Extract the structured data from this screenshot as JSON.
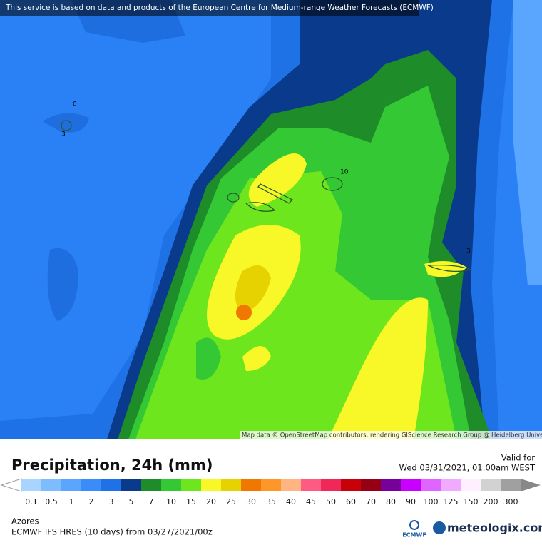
{
  "banner": "This service is based on data and products of the European Centre for Medium-range Weather Forecasts (ECMWF)",
  "attribution": "Map data © OpenStreetMap contributors, rendering GIScience Research Group @ Heidelberg University",
  "contour_labels": [
    "0",
    "3",
    "10",
    "3"
  ],
  "title": "Precipitation, 24h (mm)",
  "valid_label": "Valid for",
  "valid_time": "Wed 03/31/2021, 01:00am WEST",
  "legend": {
    "labels": [
      "0.1",
      "0.5",
      "1",
      "2",
      "3",
      "5",
      "7",
      "10",
      "15",
      "20",
      "25",
      "30",
      "35",
      "40",
      "45",
      "50",
      "60",
      "70",
      "80",
      "90",
      "100",
      "125",
      "150",
      "200",
      "300"
    ],
    "colors": [
      "#a8d4ff",
      "#7dbcff",
      "#5aa6ff",
      "#3a8cf8",
      "#1e72e6",
      "#0a3a8c",
      "#1e8c28",
      "#34c834",
      "#6ee61e",
      "#f8f828",
      "#e6d200",
      "#f07800",
      "#ff962a",
      "#ffb482",
      "#ff5a82",
      "#f0285a",
      "#c8000a",
      "#960014",
      "#78009a",
      "#c800ff",
      "#e064ff",
      "#f0aaff",
      "#fff0ff",
      "#d2d2d2",
      "#a0a0a0"
    ]
  },
  "location": "Azores",
  "model": "ECMWF IFS HRES (10 days) from 03/27/2021/00z",
  "logo_small": "ECMWF",
  "logo": "meteologix.com"
}
